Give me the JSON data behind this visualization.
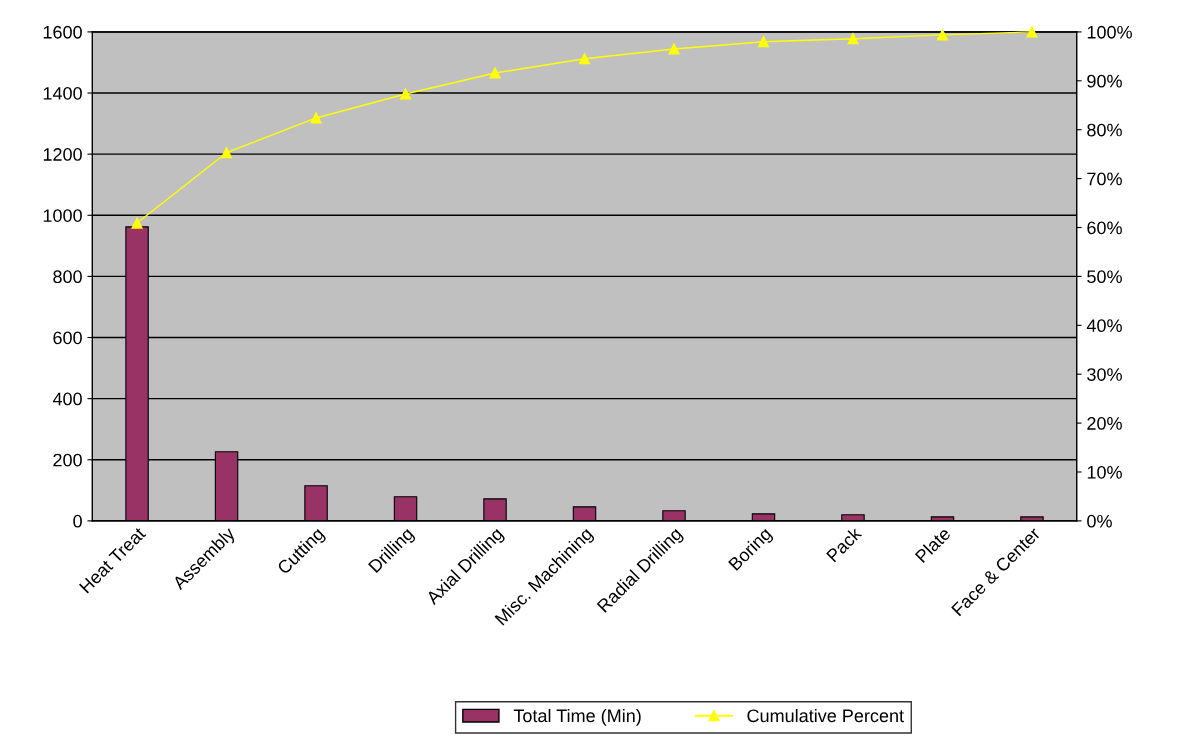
{
  "chart_data": {
    "type": "bar",
    "categories": [
      "Heat Treat",
      "Assembly",
      "Cutting",
      "Drilling",
      "Axial Drilling",
      "Misc. Machining",
      "Radial Drilling",
      "Boring",
      "Pack",
      "Plate",
      "Face & Center"
    ],
    "series": [
      {
        "name": "Total Time (Min)",
        "color": "#993366",
        "values": [
          962,
          226,
          115,
          79,
          72,
          46,
          33,
          23,
          20,
          13,
          13
        ]
      },
      {
        "name": "Cumulative Percent",
        "type": "line",
        "axis": "y2",
        "color": "#ffff00",
        "marker": "triangle",
        "values": [
          60.9,
          75.3,
          82.4,
          87.3,
          91.6,
          94.5,
          96.5,
          98.0,
          98.6,
          99.4,
          100
        ]
      }
    ],
    "ylim": [
      0,
      1600
    ],
    "yticks": [
      0,
      200,
      400,
      600,
      800,
      1000,
      1200,
      1400,
      1600
    ],
    "y2lim": [
      0,
      100
    ],
    "y2ticks": [
      {
        "value": 0,
        "label": "0%"
      },
      {
        "value": 10,
        "label": "10%"
      },
      {
        "value": 20,
        "label": "20%"
      },
      {
        "value": 30,
        "label": "30%"
      },
      {
        "value": 40,
        "label": "40%"
      },
      {
        "value": 50,
        "label": "50%"
      },
      {
        "value": 60,
        "label": "60%"
      },
      {
        "value": 70,
        "label": "70%"
      },
      {
        "value": 80,
        "label": "80%"
      },
      {
        "value": 90,
        "label": "90%"
      },
      {
        "value": 100,
        "label": "100%"
      }
    ],
    "grid": "y",
    "legend": "bottom"
  }
}
